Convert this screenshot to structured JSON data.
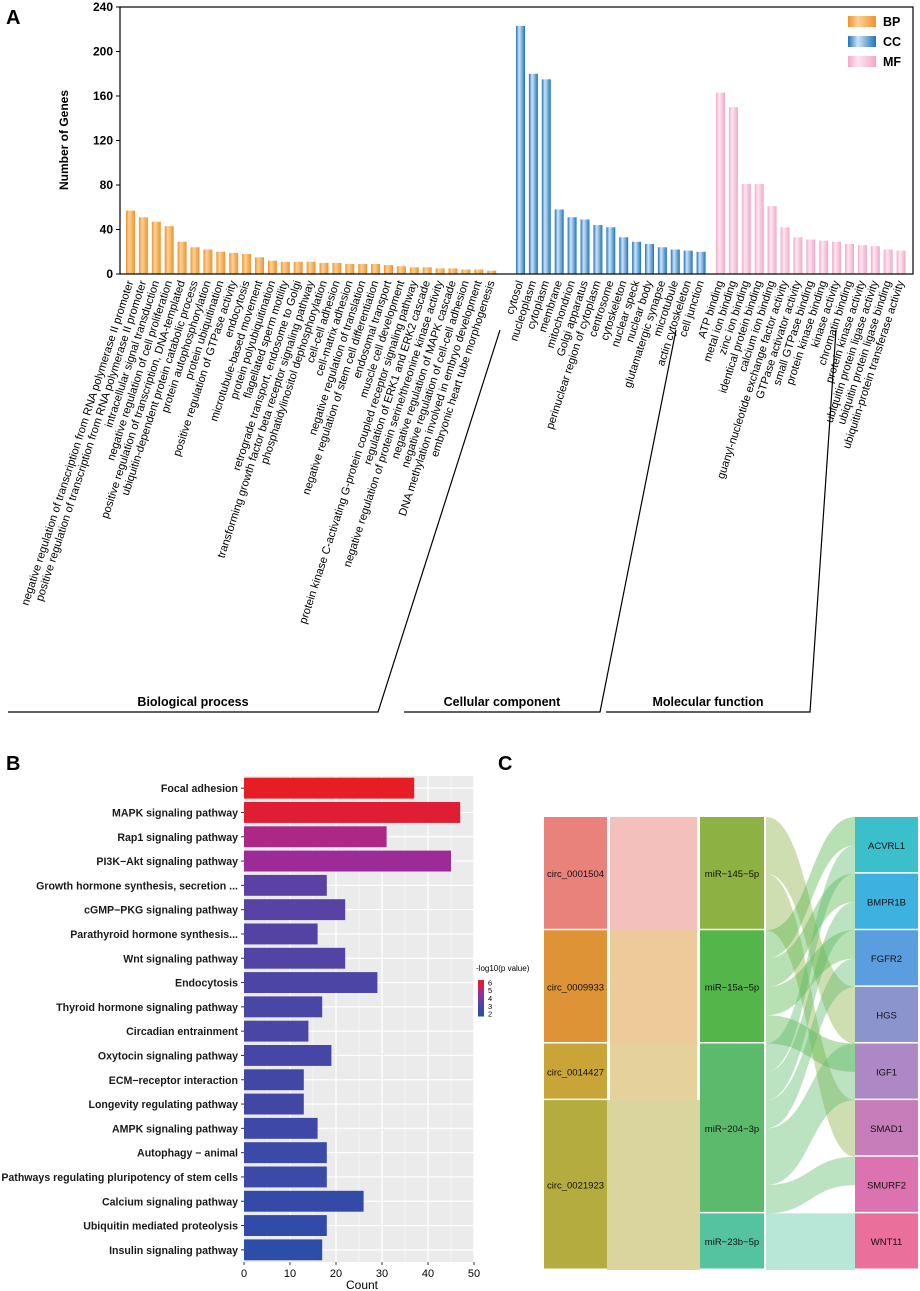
{
  "panel_labels": {
    "a": "A",
    "b": "B",
    "c": "C"
  },
  "colors": {
    "BP": "#f0922a",
    "BP_light": "#fbd29a",
    "CC": "#1e74bf",
    "CC_light": "#cfe4f6",
    "MF": "#f2a8c8",
    "MF_light": "#fde8f1"
  },
  "chart_data": [
    {
      "panel": "A",
      "type": "bar",
      "title": "",
      "ylabel": "Number of Genes",
      "ylim": [
        0,
        240
      ],
      "yticks": [
        0,
        40,
        80,
        120,
        160,
        200,
        240
      ],
      "legend": {
        "position": "top-right",
        "entries": [
          "BP",
          "CC",
          "MF"
        ]
      },
      "groups": [
        {
          "key": "BP",
          "label": "Biological process",
          "categories": [
            "negative regulation of transcription from RNA polymerase II promoter",
            "positive regulation of transcription from RNA polymerase II promoter",
            "intracellular signal transduction",
            "negative regulation of cell proliferation",
            "positive regulation of transcription, DNA-templated",
            "ubiquitin-dependent protein catabolic process",
            "protein autophosphorylation",
            "protein ubiquitination",
            "positive regulation of GTPase activity",
            "endocytosis",
            "microtubule-based movement",
            "protein polyubiquitination",
            "flagellated sperm motility",
            "retrograde transport, endosome to Golgi",
            "transforming growth factor beta receptor signaling pathway",
            "phosphatidylinositol dephosphorylation",
            "cell-cell adhesion",
            "cell-matrix adhesion",
            "negative regulation of translation",
            "negative regulation of stem cell differentiation",
            "endosomal transport",
            "muscle cell development",
            "protein kinase C-activating G-protein coupled receptor signaling pathway",
            "regulation of ERK1 and ERK2 cascade",
            "negative regulation of protein serine/threonine kinase activity",
            "negative regulation of MAPK cascade",
            "negative regulation of cell-cell adhesion",
            "DNA methylation involved in embryo development",
            "embryonic heart tube morphogenesis"
          ],
          "values": [
            57,
            51,
            47,
            43,
            29,
            24,
            22,
            20,
            19,
            18,
            15,
            12,
            11,
            11,
            11,
            10,
            10,
            9,
            9,
            9,
            8,
            7,
            6,
            6,
            5,
            5,
            4,
            4,
            3
          ]
        },
        {
          "key": "CC",
          "label": "Cellular component",
          "categories": [
            "cytosol",
            "nucleoplasm",
            "cytoplasm",
            "membrane",
            "mitochondrion",
            "Golgi apparatus",
            "perinuclear region of cytoplasm",
            "centrosome",
            "cytoskeleton",
            "nuclear speck",
            "nuclear body",
            "glutamatergic synapse",
            "microtubule",
            "actin cytoskeleton",
            "cell junction"
          ],
          "values": [
            223,
            180,
            175,
            58,
            51,
            49,
            44,
            42,
            33,
            29,
            27,
            24,
            22,
            21,
            20
          ]
        },
        {
          "key": "MF",
          "label": "Molecular function",
          "categories": [
            "ATP binding",
            "metal ion binding",
            "zinc ion binding",
            "identical protein binding",
            "calcium ion binding",
            "guanyl-nucleotide exchange factor activity",
            "GTPase activator activity",
            "small GTPase binding",
            "protein kinase binding",
            "kinase activity",
            "chromatin binding",
            "protein kinase activity",
            "ubiquitin protein ligase activity",
            "ubiquitin protein ligase binding",
            "ubiquitin-protein transferase activity"
          ],
          "values": [
            163,
            150,
            81,
            81,
            61,
            42,
            33,
            31,
            30,
            29,
            27,
            26,
            25,
            22,
            21
          ]
        }
      ]
    },
    {
      "panel": "B",
      "type": "bar",
      "orientation": "horizontal",
      "title": "",
      "xlabel": "Count",
      "ylabel": "",
      "xlim": [
        0,
        50
      ],
      "xticks": [
        0,
        10,
        20,
        30,
        40,
        50
      ],
      "colorbar": {
        "title": "-log10(p value)",
        "ticks": [
          2,
          3,
          4,
          5,
          6
        ],
        "position": "right"
      },
      "categories": [
        "Focal adhesion",
        "MAPK signaling pathway",
        "Rap1 signaling pathway",
        "PI3K−Akt signaling pathway",
        "Growth hormone synthesis, secretion ...",
        "cGMP−PKG signaling pathway",
        "Parathyroid hormone synthesis...",
        "Wnt signaling pathway",
        "Endocytosis",
        "Thyroid hormone signaling pathway",
        "Circadian entrainment",
        "Oxytocin signaling pathway",
        "ECM−receptor interaction",
        "Longevity regulating pathway",
        "AMPK signaling pathway",
        "Autophagy − animal",
        "Pathways regulating pluripotency of stem cells",
        "Calcium signaling pathway",
        "Ubiquitin mediated proteolysis",
        "Insulin signaling pathway"
      ],
      "values": [
        37,
        47,
        31,
        45,
        18,
        22,
        16,
        22,
        29,
        17,
        14,
        19,
        13,
        13,
        16,
        18,
        18,
        26,
        18,
        17
      ],
      "neg_log10_p": [
        6.3,
        6.1,
        4.9,
        4.6,
        3.3,
        3.2,
        3.1,
        3.0,
        2.9,
        2.8,
        2.8,
        2.7,
        2.6,
        2.6,
        2.5,
        2.4,
        2.4,
        2.2,
        2.1,
        2.0
      ]
    },
    {
      "panel": "C",
      "type": "sankey",
      "title": "",
      "columns": [
        {
          "key": "circ",
          "nodes": [
            {
              "name": "circ_0001504",
              "weight": 1,
              "color": "#e9827a"
            },
            {
              "name": "circ_0009933",
              "weight": 1,
              "color": "#de9336"
            },
            {
              "name": "circ_0014427",
              "weight": 0.5,
              "color": "#c9a437"
            },
            {
              "name": "circ_0021923",
              "weight": 1.5,
              "color": "#b5ac3f"
            }
          ]
        },
        {
          "key": "mirna",
          "nodes": [
            {
              "name": "miR−145−5p",
              "weight": 1,
              "color": "#8db142"
            },
            {
              "name": "miR−15a−5p",
              "weight": 1,
              "color": "#54b54a"
            },
            {
              "name": "miR−204−3p",
              "weight": 1.5,
              "color": "#5cba6c"
            },
            {
              "name": "miR−23b−5p",
              "weight": 0.5,
              "color": "#56c3a0"
            }
          ]
        },
        {
          "key": "gene",
          "nodes": [
            {
              "name": "ACVRL1",
              "weight": 1,
              "color": "#3bbfcb"
            },
            {
              "name": "BMPR1B",
              "weight": 1,
              "color": "#3db2e0"
            },
            {
              "name": "FGFR2",
              "weight": 1,
              "color": "#5a9ee0"
            },
            {
              "name": "HGS",
              "weight": 1,
              "color": "#8b94cd"
            },
            {
              "name": "IGF1",
              "weight": 1,
              "color": "#ad88c4"
            },
            {
              "name": "SMAD1",
              "weight": 1,
              "color": "#c77db9"
            },
            {
              "name": "SMURF2",
              "weight": 1,
              "color": "#dc73b0"
            },
            {
              "name": "WNT11",
              "weight": 1,
              "color": "#ea6f9a"
            }
          ]
        }
      ],
      "links_circ_mirna": [
        {
          "source": "circ_0001504",
          "target": "miR−145−5p",
          "value": 1
        },
        {
          "source": "circ_0009933",
          "target": "miR−15a−5p",
          "value": 1
        },
        {
          "source": "circ_0014427",
          "target": "miR−204−3p",
          "value": 0.5
        },
        {
          "source": "circ_0021923",
          "target": "miR−204−3p",
          "value": 1
        },
        {
          "source": "circ_0021923",
          "target": "miR−23b−5p",
          "value": 0.5
        }
      ],
      "links_mirna_gene": [
        {
          "source": "miR−145−5p",
          "target": "HGS",
          "value": 0.5
        },
        {
          "source": "miR−145−5p",
          "target": "SMAD1",
          "value": 0.5
        },
        {
          "source": "miR−15a−5p",
          "target": "ACVRL1",
          "value": 0.25
        },
        {
          "source": "miR−15a−5p",
          "target": "BMPR1B",
          "value": 0.25
        },
        {
          "source": "miR−15a−5p",
          "target": "FGFR2",
          "value": 0.25
        },
        {
          "source": "miR−15a−5p",
          "target": "IGF1",
          "value": 0.25
        },
        {
          "source": "miR−204−3p",
          "target": "ACVRL1",
          "value": 0.25
        },
        {
          "source": "miR−204−3p",
          "target": "BMPR1B",
          "value": 0.25
        },
        {
          "source": "miR−204−3p",
          "target": "FGFR2",
          "value": 0.25
        },
        {
          "source": "miR−204−3p",
          "target": "HGS",
          "value": 0.25
        },
        {
          "source": "miR−204−3p",
          "target": "IGF1",
          "value": 0.25
        },
        {
          "source": "miR−204−3p",
          "target": "SMURF2",
          "value": 0.25
        },
        {
          "source": "miR−23b−5p",
          "target": "WNT11",
          "value": 0.5
        }
      ]
    }
  ]
}
